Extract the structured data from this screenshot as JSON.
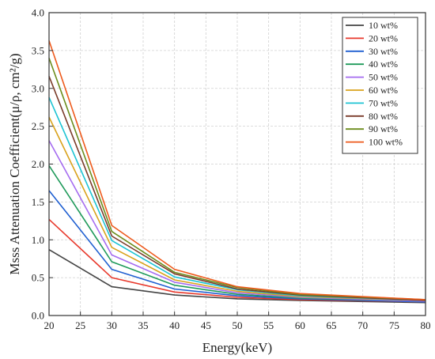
{
  "chart_data": {
    "type": "line",
    "title": "",
    "xlabel": "Energy(keV)",
    "ylabel": "Msss Attenuation Coefficient(μ/ρ, cm²/g)",
    "x": [
      20,
      30,
      40,
      50,
      60,
      80
    ],
    "xlim": [
      20,
      80
    ],
    "ylim": [
      0,
      4.0
    ],
    "xticks": [
      20,
      25,
      30,
      35,
      40,
      45,
      50,
      55,
      60,
      65,
      70,
      75,
      80
    ],
    "yticks": [
      "0.0",
      "0.5",
      "1.0",
      "1.5",
      "2.0",
      "2.5",
      "3.0",
      "3.5",
      "4.0"
    ],
    "grid": true,
    "legend_position": "top-right",
    "series": [
      {
        "name": "10 wt%",
        "color": "#444444",
        "values": [
          0.87,
          0.38,
          0.27,
          0.22,
          0.2,
          0.17
        ]
      },
      {
        "name": "20 wt%",
        "color": "#e8392c",
        "values": [
          1.27,
          0.5,
          0.31,
          0.24,
          0.21,
          0.18
        ]
      },
      {
        "name": "30 wt%",
        "color": "#1f5fd1",
        "values": [
          1.65,
          0.61,
          0.35,
          0.26,
          0.22,
          0.18
        ]
      },
      {
        "name": "40 wt%",
        "color": "#1f9a5a",
        "values": [
          1.98,
          0.71,
          0.4,
          0.28,
          0.23,
          0.19
        ]
      },
      {
        "name": "50 wt%",
        "color": "#a56cf0",
        "values": [
          2.31,
          0.8,
          0.44,
          0.3,
          0.24,
          0.19
        ]
      },
      {
        "name": "60 wt%",
        "color": "#d9a21c",
        "values": [
          2.62,
          0.9,
          0.47,
          0.32,
          0.25,
          0.2
        ]
      },
      {
        "name": "70 wt%",
        "color": "#1cc3d3",
        "values": [
          2.88,
          0.99,
          0.51,
          0.34,
          0.26,
          0.2
        ]
      },
      {
        "name": "80 wt%",
        "color": "#7a3b2a",
        "values": [
          3.16,
          1.05,
          0.55,
          0.35,
          0.27,
          0.2
        ]
      },
      {
        "name": "90 wt%",
        "color": "#6b8c1c",
        "values": [
          3.4,
          1.11,
          0.57,
          0.37,
          0.28,
          0.21
        ]
      },
      {
        "name": "100 wt%",
        "color": "#ee5a1c",
        "values": [
          3.63,
          1.19,
          0.61,
          0.38,
          0.29,
          0.21
        ]
      }
    ]
  }
}
